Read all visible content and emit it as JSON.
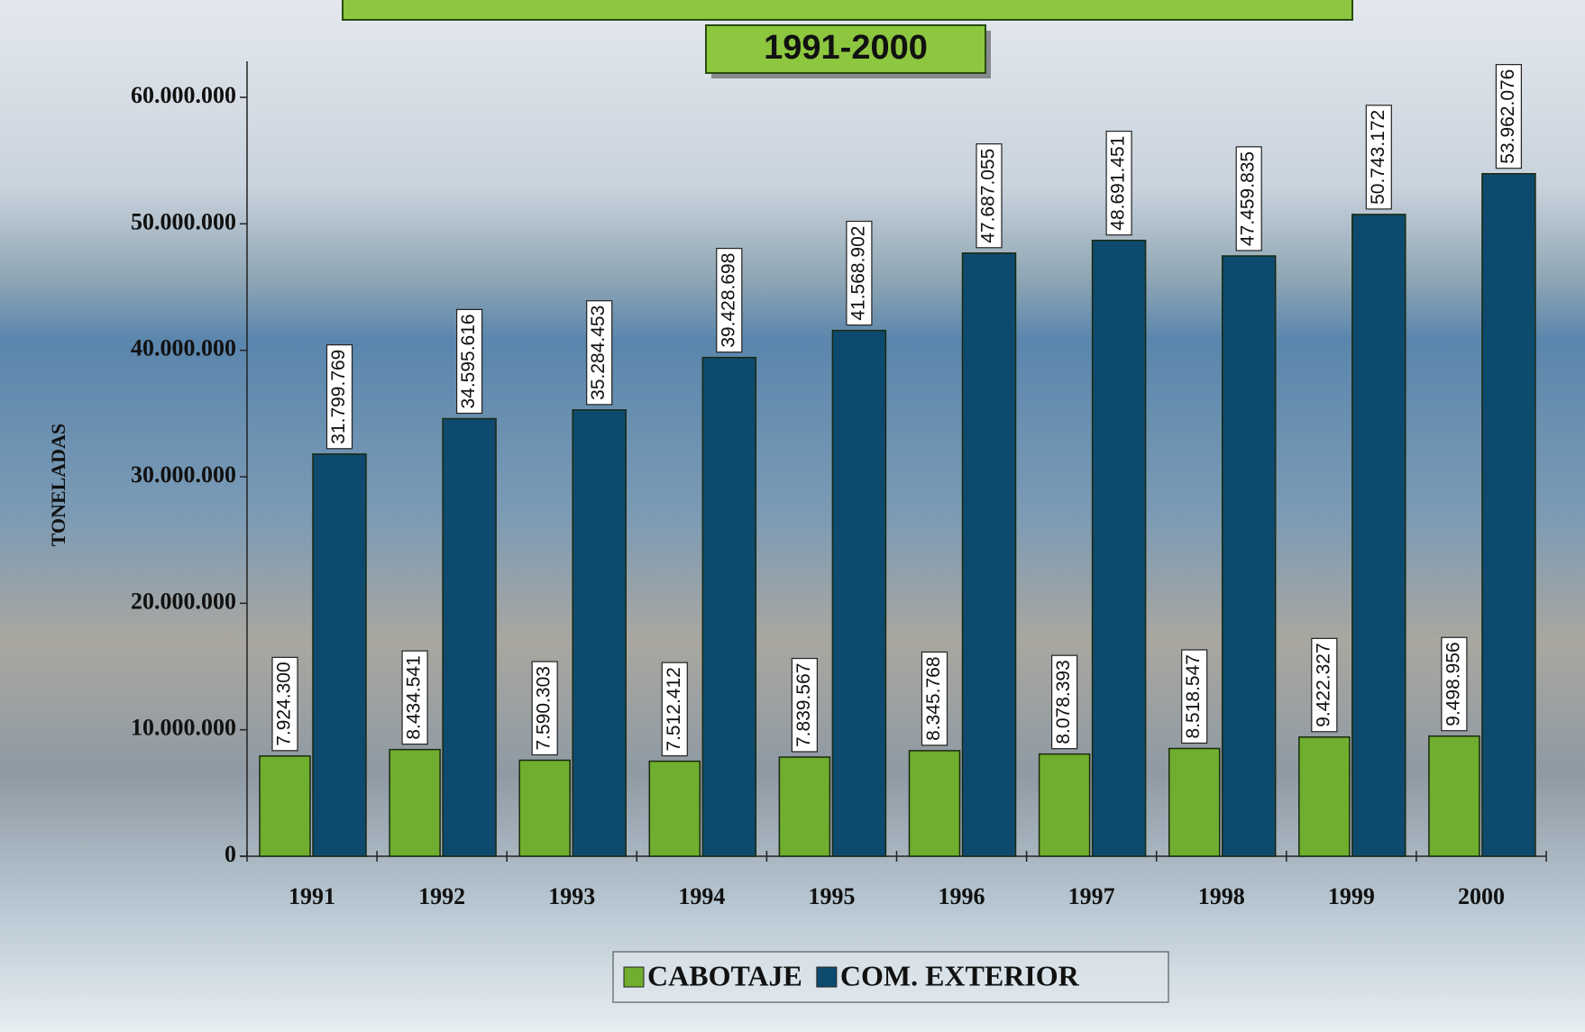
{
  "chart_data": {
    "type": "bar",
    "subtitle": "1991-2000",
    "y_label": "TONELADAS",
    "categories": [
      "1991",
      "1992",
      "1993",
      "1994",
      "1995",
      "1996",
      "1997",
      "1998",
      "1999",
      "2000"
    ],
    "series": [
      {
        "name": "CABOTAJE",
        "color": "#6fae2e",
        "values": [
          7924300,
          8434541,
          7590303,
          7512412,
          7839567,
          8345768,
          8078393,
          8518547,
          9422327,
          9498956
        ],
        "value_labels": [
          "7.924.300",
          "8.434.541",
          "7.590.303",
          "7.512.412",
          "7.839.567",
          "8.345.768",
          "8.078.393",
          "8.518.547",
          "9.422.327",
          "9.498.956"
        ]
      },
      {
        "name": "COM. EXTERIOR",
        "color": "#0e4a6e",
        "values": [
          31799769,
          34595616,
          35284453,
          39428698,
          41568902,
          47687055,
          48691451,
          47459835,
          50743172,
          53962076
        ],
        "value_labels": [
          "31.799.769",
          "34.595.616",
          "35.284.453",
          "39.428.698",
          "41.568.902",
          "47.687.055",
          "48.691.451",
          "47.459.835",
          "50.743.172",
          "53.962.076"
        ]
      }
    ],
    "ylim": [
      0,
      60000000
    ],
    "yticks": [
      0,
      {
        "value": 10000000,
        "label": "10.000.000"
      },
      {
        "value": 20000000,
        "label": "20.000.000"
      },
      {
        "value": 30000000,
        "label": "30.000.000"
      },
      {
        "value": 40000000,
        "label": "40.000.000"
      },
      {
        "value": 50000000,
        "label": "50.000.000"
      },
      {
        "value": 60000000,
        "label": "60.000.000"
      }
    ],
    "legend": "bottom"
  }
}
